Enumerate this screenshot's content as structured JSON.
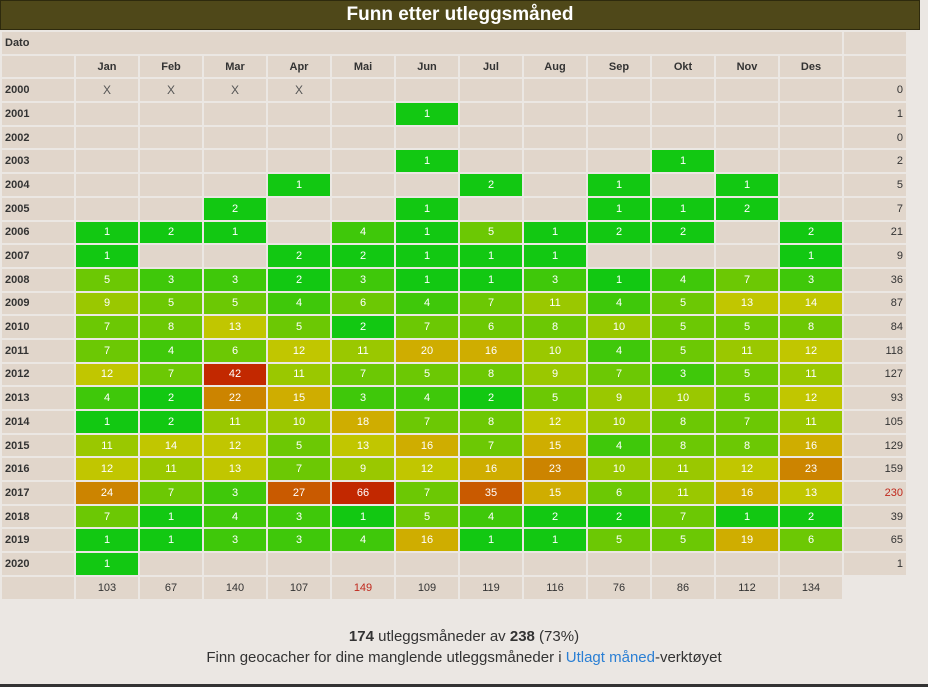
{
  "title": "Funn etter utleggsmåned",
  "dato_label": "Dato",
  "months": [
    "Jan",
    "Feb",
    "Mar",
    "Apr",
    "Mai",
    "Jun",
    "Jul",
    "Aug",
    "Sep",
    "Okt",
    "Nov",
    "Des"
  ],
  "rows": [
    {
      "year": "2000",
      "cells": [
        "X",
        "X",
        "X",
        "X",
        "",
        "",
        "",
        "",
        "",
        "",
        "",
        ""
      ],
      "total": "0"
    },
    {
      "year": "2001",
      "cells": [
        "",
        "",
        "",
        "",
        "",
        "1",
        "",
        "",
        "",
        "",
        "",
        ""
      ],
      "total": "1"
    },
    {
      "year": "2002",
      "cells": [
        "",
        "",
        "",
        "",
        "",
        "",
        "",
        "",
        "",
        "",
        "",
        ""
      ],
      "total": "0"
    },
    {
      "year": "2003",
      "cells": [
        "",
        "",
        "",
        "",
        "",
        "1",
        "",
        "",
        "",
        "1",
        "",
        ""
      ],
      "total": "2"
    },
    {
      "year": "2004",
      "cells": [
        "",
        "",
        "",
        "1",
        "",
        "",
        "2",
        "",
        "1",
        "",
        "1",
        ""
      ],
      "total": "5"
    },
    {
      "year": "2005",
      "cells": [
        "",
        "",
        "2",
        "",
        "",
        "1",
        "",
        "",
        "1",
        "1",
        "2",
        ""
      ],
      "total": "7"
    },
    {
      "year": "2006",
      "cells": [
        "1",
        "2",
        "1",
        "",
        "4",
        "1",
        "5",
        "1",
        "2",
        "2",
        "",
        "2"
      ],
      "total": "21"
    },
    {
      "year": "2007",
      "cells": [
        "1",
        "",
        "",
        "2",
        "2",
        "1",
        "1",
        "1",
        "",
        "",
        "",
        "1"
      ],
      "total": "9"
    },
    {
      "year": "2008",
      "cells": [
        "5",
        "3",
        "3",
        "2",
        "3",
        "1",
        "1",
        "3",
        "1",
        "4",
        "7",
        "3"
      ],
      "total": "36"
    },
    {
      "year": "2009",
      "cells": [
        "9",
        "5",
        "5",
        "4",
        "6",
        "4",
        "7",
        "11",
        "4",
        "5",
        "13",
        "14"
      ],
      "total": "87"
    },
    {
      "year": "2010",
      "cells": [
        "7",
        "8",
        "13",
        "5",
        "2",
        "7",
        "6",
        "8",
        "10",
        "5",
        "5",
        "8"
      ],
      "total": "84"
    },
    {
      "year": "2011",
      "cells": [
        "7",
        "4",
        "6",
        "12",
        "11",
        "20",
        "16",
        "10",
        "4",
        "5",
        "11",
        "12"
      ],
      "total": "118"
    },
    {
      "year": "2012",
      "cells": [
        "12",
        "7",
        "42",
        "11",
        "7",
        "5",
        "8",
        "9",
        "7",
        "3",
        "5",
        "11"
      ],
      "total": "127"
    },
    {
      "year": "2013",
      "cells": [
        "4",
        "2",
        "22",
        "15",
        "3",
        "4",
        "2",
        "5",
        "9",
        "10",
        "5",
        "12"
      ],
      "total": "93"
    },
    {
      "year": "2014",
      "cells": [
        "1",
        "2",
        "11",
        "10",
        "18",
        "7",
        "8",
        "12",
        "10",
        "8",
        "7",
        "11"
      ],
      "total": "105"
    },
    {
      "year": "2015",
      "cells": [
        "11",
        "14",
        "12",
        "5",
        "13",
        "16",
        "7",
        "15",
        "4",
        "8",
        "8",
        "16"
      ],
      "total": "129"
    },
    {
      "year": "2016",
      "cells": [
        "12",
        "11",
        "13",
        "7",
        "9",
        "12",
        "16",
        "23",
        "10",
        "11",
        "12",
        "23"
      ],
      "total": "159"
    },
    {
      "year": "2017",
      "cells": [
        "24",
        "7",
        "3",
        "27",
        "66",
        "7",
        "35",
        "15",
        "6",
        "11",
        "16",
        "13"
      ],
      "total": "230"
    },
    {
      "year": "2018",
      "cells": [
        "7",
        "1",
        "4",
        "3",
        "1",
        "5",
        "4",
        "2",
        "2",
        "7",
        "1",
        "2"
      ],
      "total": "39"
    },
    {
      "year": "2019",
      "cells": [
        "1",
        "1",
        "3",
        "3",
        "4",
        "16",
        "1",
        "1",
        "5",
        "5",
        "19",
        "6"
      ],
      "total": "65"
    },
    {
      "year": "2020",
      "cells": [
        "1",
        "",
        "",
        "",
        "",
        "",
        "",
        "",
        "",
        "",
        "",
        ""
      ],
      "total": "1"
    }
  ],
  "column_totals": [
    "103",
    "67",
    "140",
    "107",
    "149",
    "109",
    "119",
    "116",
    "76",
    "86",
    "112",
    "134"
  ],
  "highlights": {
    "max_column_total": "149",
    "max_row_total": "230"
  },
  "colors": {
    "title_bg": "#4f4819",
    "cell_bg": "#e1d6cb",
    "page_bg": "#ebe7e3",
    "highlight_red": "#c0281c",
    "link": "#2a7fd4",
    "scale": [
      "#12c812",
      "#3fc80a",
      "#6cc804",
      "#9ac800",
      "#c1c600",
      "#cfad00",
      "#cc8400",
      "#c95a00",
      "#c22800"
    ]
  },
  "summary": {
    "count": "174",
    "text1": " utleggsmåneder av ",
    "total": "238",
    "percent": " (73%)",
    "line2_prefix": "Finn geocacher for dine manglende utleggsmåneder i ",
    "link_text": "Utlagt måned",
    "line2_suffix": "-verktøyet"
  }
}
